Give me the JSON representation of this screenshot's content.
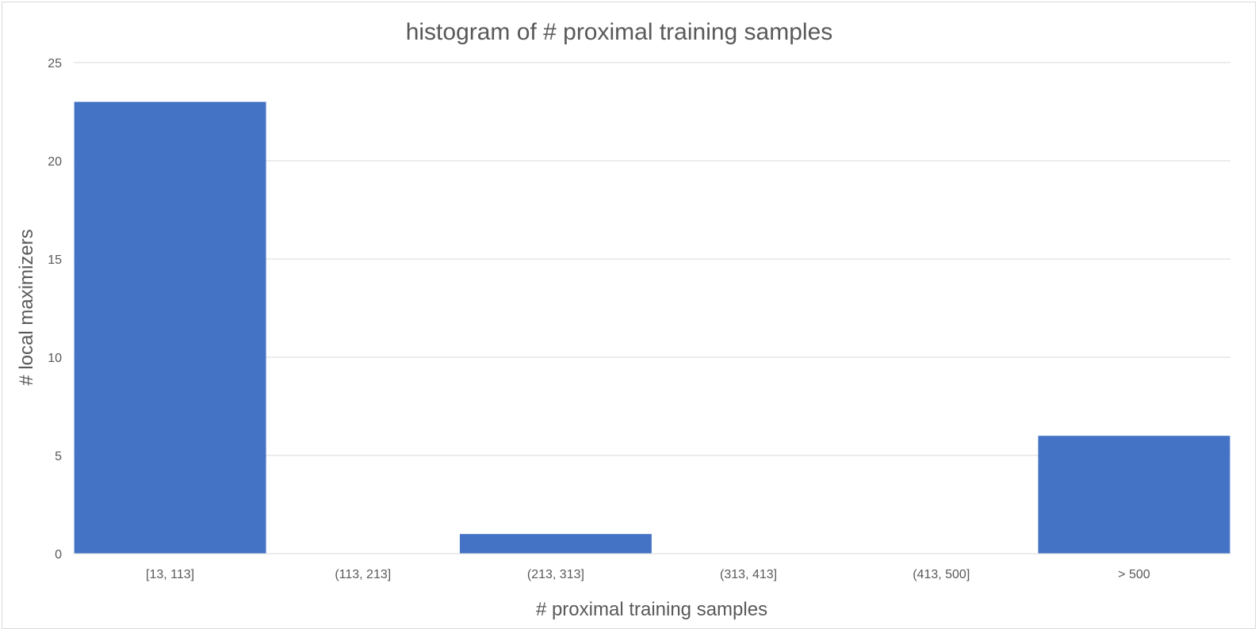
{
  "chart_data": {
    "type": "bar",
    "title": "histogram of # proximal training samples",
    "xlabel": "# proximal training samples",
    "ylabel": "# local maximizers",
    "categories": [
      "[13, 113]",
      "(113, 213]",
      "(213, 313]",
      "(313, 413]",
      "(413, 500]",
      "> 500"
    ],
    "values": [
      23,
      0,
      1,
      0,
      0,
      6
    ],
    "ylim": [
      0,
      25
    ],
    "yticks": [
      0,
      5,
      10,
      15,
      20,
      25
    ],
    "grid": true,
    "bar_color": "#4472c4"
  }
}
